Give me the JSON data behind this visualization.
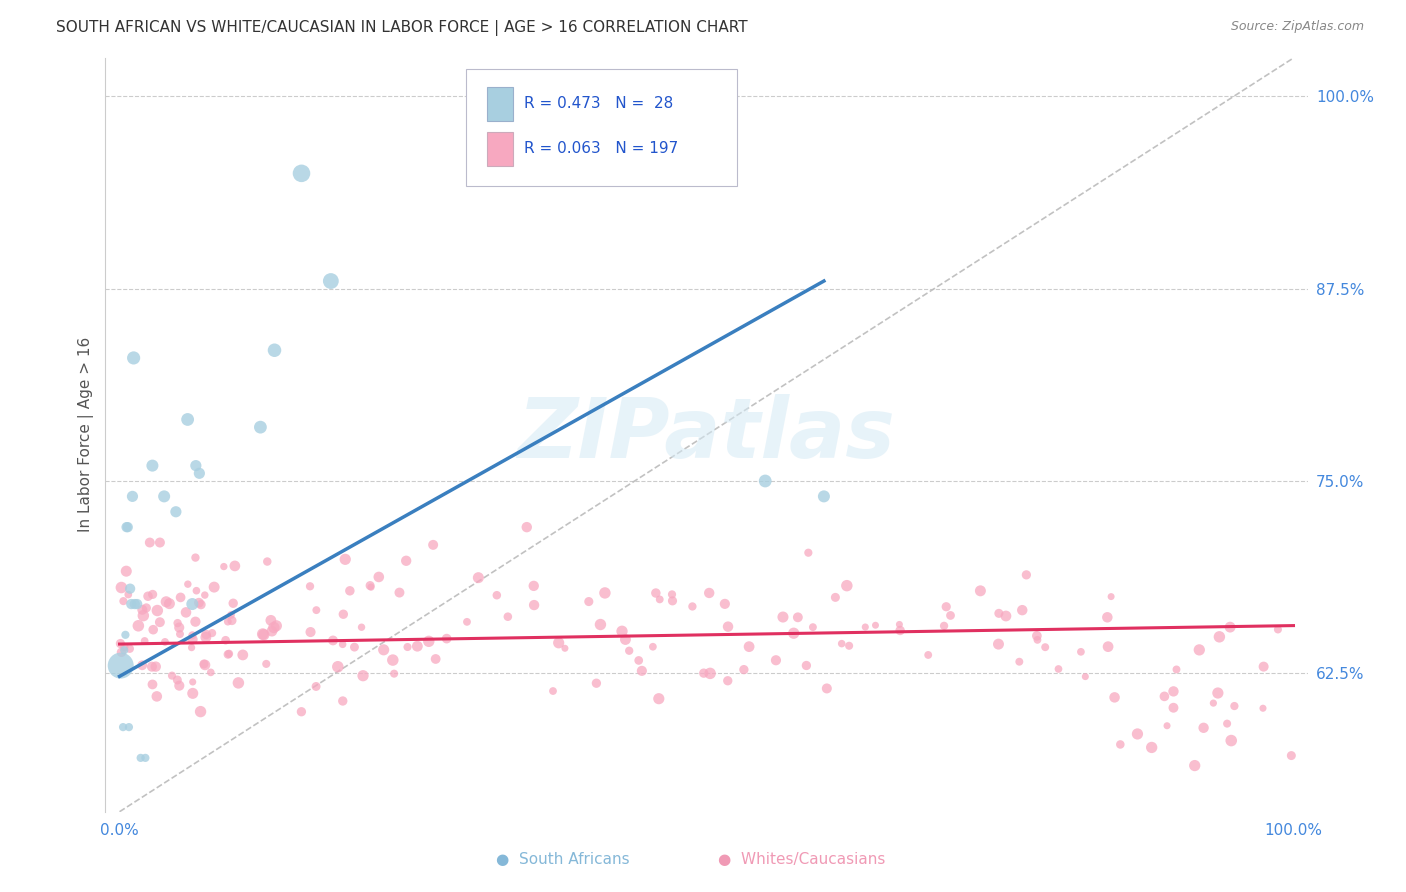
{
  "title": "SOUTH AFRICAN VS WHITE/CAUCASIAN IN LABOR FORCE | AGE > 16 CORRELATION CHART",
  "source": "Source: ZipAtlas.com",
  "ylabel": "In Labor Force | Age > 16",
  "blue_R": 0.473,
  "blue_N": 28,
  "pink_R": 0.063,
  "pink_N": 197,
  "blue_color": "#a8cfe0",
  "pink_color": "#f7a8c0",
  "blue_line_color": "#3a7fbf",
  "pink_line_color": "#e03060",
  "legend_text_color": "#2255cc",
  "watermark": "ZIPatlas",
  "background_color": "#ffffff",
  "grid_color": "#cccccc",
  "title_color": "#333333",
  "blue_scatter_x": [
    0.001,
    0.003,
    0.004,
    0.005,
    0.006,
    0.007,
    0.008,
    0.009,
    0.01,
    0.011,
    0.012,
    0.013,
    0.015,
    0.018,
    0.022,
    0.028,
    0.038,
    0.048,
    0.058,
    0.062,
    0.065,
    0.068,
    0.12,
    0.132,
    0.155,
    0.18,
    0.55,
    0.6
  ],
  "blue_scatter_y": [
    0.63,
    0.59,
    0.64,
    0.65,
    0.72,
    0.72,
    0.59,
    0.68,
    0.67,
    0.74,
    0.83,
    0.67,
    0.67,
    0.57,
    0.57,
    0.76,
    0.74,
    0.73,
    0.79,
    0.67,
    0.76,
    0.755,
    0.785,
    0.835,
    0.95,
    0.88,
    0.75,
    0.74
  ],
  "blue_scatter_sizes": [
    350,
    35,
    35,
    35,
    55,
    55,
    35,
    55,
    55,
    65,
    90,
    55,
    55,
    35,
    35,
    75,
    75,
    65,
    85,
    75,
    65,
    65,
    85,
    95,
    160,
    130,
    85,
    75
  ],
  "blue_line_x0": 0.0,
  "blue_line_y0": 0.623,
  "blue_line_x1": 0.6,
  "blue_line_y1": 0.88,
  "pink_line_x0": 0.0,
  "pink_line_y0": 0.644,
  "pink_line_x1": 1.0,
  "pink_line_y1": 0.656,
  "diag_color": "#bbbbbb",
  "yticks": [
    0.625,
    0.75,
    0.875,
    1.0
  ],
  "ytick_labels": [
    "62.5%",
    "75.0%",
    "87.5%",
    "100.0%"
  ],
  "xticks": [
    0.0,
    0.2,
    0.4,
    0.6,
    0.8,
    1.0
  ],
  "xtick_labels": [
    "0.0%",
    "",
    "",
    "",
    "",
    "100.0%"
  ],
  "xlim": [
    -0.012,
    1.012
  ],
  "ylim": [
    0.535,
    1.025
  ]
}
